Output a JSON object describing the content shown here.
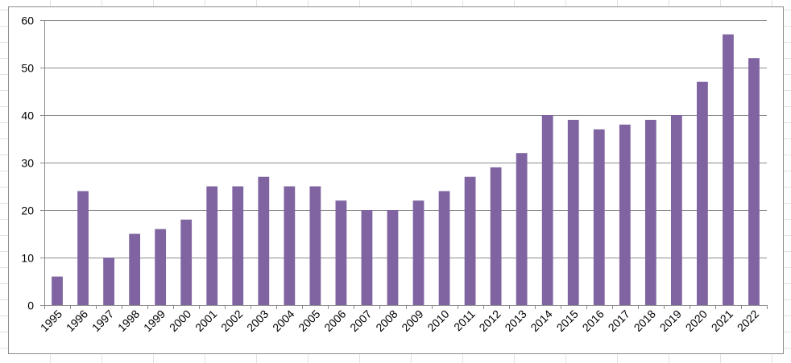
{
  "chart_data": {
    "type": "bar",
    "title": "",
    "xlabel": "",
    "ylabel": "",
    "categories": [
      "1995",
      "1996",
      "1997",
      "1998",
      "1999",
      "2000",
      "2001",
      "2002",
      "2003",
      "2004",
      "2005",
      "2006",
      "2007",
      "2008",
      "2009",
      "2010",
      "2011",
      "2012",
      "2013",
      "2014",
      "2015",
      "2016",
      "2017",
      "2018",
      "2019",
      "2020",
      "2021",
      "2022"
    ],
    "values": [
      6,
      24,
      10,
      15,
      16,
      18,
      25,
      25,
      27,
      25,
      25,
      22,
      20,
      20,
      22,
      24,
      27,
      29,
      32,
      40,
      39,
      37,
      38,
      39,
      40,
      47,
      57,
      52
    ],
    "ylim": [
      0,
      60
    ],
    "yticks": [
      0,
      10,
      20,
      30,
      40,
      50,
      60
    ],
    "grid": true,
    "legend": "none",
    "bar_color": "#8064a2",
    "gridline_color": "#8c8c8c"
  }
}
